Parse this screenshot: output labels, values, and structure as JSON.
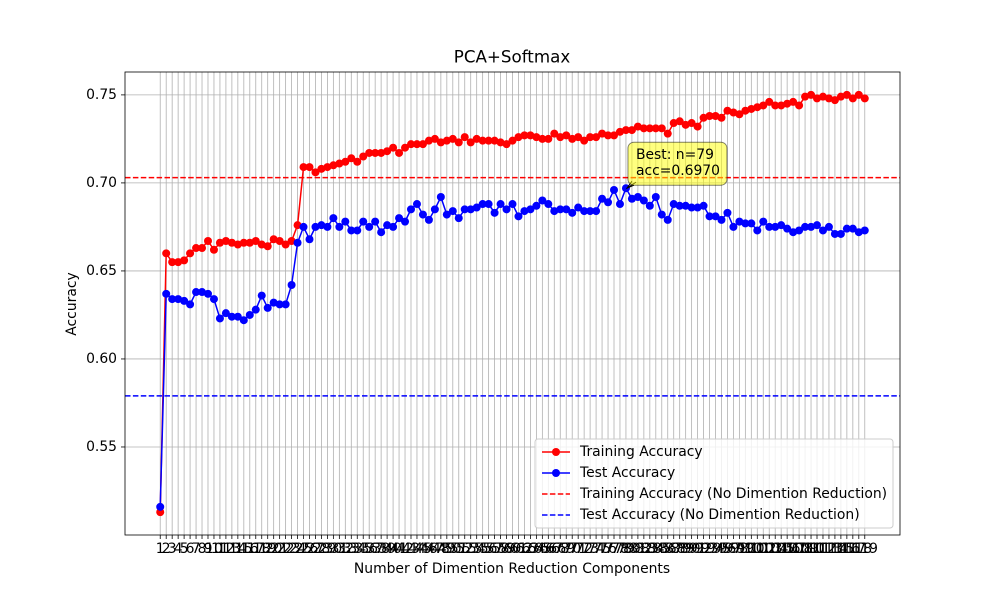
{
  "chart_data": {
    "type": "line",
    "title": "PCA+Softmax",
    "xlabel": "Number of Dimention Reduction Components",
    "ylabel": "Accuracy",
    "x": [
      1,
      2,
      3,
      4,
      5,
      6,
      7,
      8,
      9,
      10,
      11,
      12,
      13,
      14,
      15,
      16,
      17,
      18,
      19,
      20,
      21,
      22,
      23,
      24,
      25,
      26,
      27,
      28,
      29,
      30,
      31,
      32,
      33,
      34,
      35,
      36,
      37,
      38,
      39,
      40,
      41,
      42,
      43,
      44,
      45,
      46,
      47,
      48,
      49,
      50,
      51,
      52,
      53,
      54,
      55,
      56,
      57,
      58,
      59,
      60,
      61,
      62,
      63,
      64,
      65,
      66,
      67,
      68,
      69,
      70,
      71,
      72,
      73,
      74,
      75,
      76,
      77,
      78,
      79,
      80,
      81,
      82,
      83,
      84,
      85,
      86,
      87,
      88,
      89,
      90,
      91,
      92,
      93,
      94,
      95,
      96,
      97,
      98,
      99,
      100,
      101,
      102,
      103,
      104,
      105,
      106,
      107,
      108,
      109,
      110,
      111,
      112,
      113,
      114,
      115,
      116,
      117,
      118,
      119
    ],
    "series": [
      {
        "name": "Training Accuracy",
        "color": "#ff0000",
        "values": [
          0.513,
          0.66,
          0.655,
          0.655,
          0.656,
          0.66,
          0.663,
          0.663,
          0.667,
          0.662,
          0.666,
          0.667,
          0.666,
          0.665,
          0.666,
          0.666,
          0.667,
          0.665,
          0.664,
          0.668,
          0.667,
          0.665,
          0.667,
          0.676,
          0.709,
          0.709,
          0.706,
          0.708,
          0.709,
          0.71,
          0.711,
          0.712,
          0.714,
          0.712,
          0.715,
          0.717,
          0.717,
          0.717,
          0.718,
          0.72,
          0.717,
          0.72,
          0.722,
          0.722,
          0.722,
          0.724,
          0.725,
          0.723,
          0.724,
          0.725,
          0.723,
          0.726,
          0.723,
          0.725,
          0.724,
          0.724,
          0.724,
          0.723,
          0.722,
          0.724,
          0.726,
          0.727,
          0.727,
          0.726,
          0.725,
          0.725,
          0.728,
          0.726,
          0.727,
          0.725,
          0.726,
          0.724,
          0.726,
          0.726,
          0.728,
          0.727,
          0.727,
          0.729,
          0.73,
          0.73,
          0.732,
          0.731,
          0.731,
          0.731,
          0.731,
          0.728,
          0.734,
          0.735,
          0.733,
          0.734,
          0.732,
          0.737,
          0.738,
          0.738,
          0.737,
          0.741,
          0.74,
          0.739,
          0.741,
          0.742,
          0.743,
          0.744,
          0.746,
          0.744,
          0.744,
          0.745,
          0.746,
          0.744,
          0.749,
          0.75,
          0.748,
          0.749,
          0.748,
          0.747,
          0.749,
          0.75,
          0.748,
          0.75,
          0.748
        ]
      },
      {
        "name": "Test Accuracy",
        "color": "#0000ff",
        "values": [
          0.516,
          0.637,
          0.634,
          0.634,
          0.633,
          0.631,
          0.638,
          0.638,
          0.637,
          0.634,
          0.623,
          0.626,
          0.624,
          0.624,
          0.622,
          0.625,
          0.628,
          0.636,
          0.629,
          0.632,
          0.631,
          0.631,
          0.642,
          0.666,
          0.675,
          0.668,
          0.675,
          0.676,
          0.675,
          0.68,
          0.675,
          0.678,
          0.673,
          0.673,
          0.678,
          0.675,
          0.678,
          0.672,
          0.676,
          0.675,
          0.68,
          0.678,
          0.685,
          0.688,
          0.682,
          0.679,
          0.685,
          0.692,
          0.682,
          0.684,
          0.68,
          0.685,
          0.685,
          0.686,
          0.688,
          0.688,
          0.683,
          0.688,
          0.685,
          0.688,
          0.681,
          0.684,
          0.685,
          0.687,
          0.69,
          0.688,
          0.684,
          0.685,
          0.685,
          0.683,
          0.686,
          0.684,
          0.684,
          0.684,
          0.691,
          0.689,
          0.696,
          0.688,
          0.697,
          0.691,
          0.692,
          0.69,
          0.687,
          0.692,
          0.682,
          0.679,
          0.688,
          0.687,
          0.687,
          0.686,
          0.686,
          0.687,
          0.681,
          0.681,
          0.679,
          0.683,
          0.675,
          0.678,
          0.677,
          0.677,
          0.673,
          0.678,
          0.675,
          0.675,
          0.676,
          0.674,
          0.672,
          0.673,
          0.675,
          0.675,
          0.676,
          0.673,
          0.675,
          0.671,
          0.671,
          0.674,
          0.674,
          0.672,
          0.673
        ]
      }
    ],
    "hlines": [
      {
        "name": "Training Accuracy (No Dimention Reduction)",
        "color": "#ff0000",
        "value": 0.703
      },
      {
        "name": "Test Accuracy (No Dimention Reduction)",
        "color": "#0000ff",
        "value": 0.579
      }
    ],
    "annotation": {
      "text": [
        "Best: n=79",
        "acc=0.6970"
      ],
      "x": 79,
      "y": 0.697
    },
    "xlim": [
      -4.9,
      124.9
    ],
    "ylim": [
      0.5,
      0.763
    ],
    "xticks": [
      1,
      2,
      3,
      4,
      5,
      6,
      7,
      8,
      9,
      10,
      11,
      12,
      13,
      14,
      15,
      16,
      17,
      18,
      19,
      20,
      21,
      22,
      23,
      24,
      25,
      26,
      27,
      28,
      29,
      30,
      31,
      32,
      33,
      34,
      35,
      36,
      37,
      38,
      39,
      40,
      41,
      42,
      43,
      44,
      45,
      46,
      47,
      48,
      49,
      50,
      51,
      52,
      53,
      54,
      55,
      56,
      57,
      58,
      59,
      60,
      61,
      62,
      63,
      64,
      65,
      66,
      67,
      68,
      69,
      70,
      71,
      72,
      73,
      74,
      75,
      76,
      77,
      78,
      79,
      80,
      81,
      82,
      83,
      84,
      85,
      86,
      87,
      88,
      89,
      90,
      91,
      92,
      93,
      94,
      95,
      96,
      97,
      98,
      99,
      100,
      101,
      102,
      103,
      104,
      105,
      106,
      107,
      108,
      109,
      110,
      111,
      112,
      113,
      114,
      115,
      116,
      117,
      118,
      119
    ],
    "yticks": [
      0.55,
      {
        "value": 0.6,
        "label": "0.60"
      },
      0.65,
      {
        "value": 0.7,
        "label": "0.70"
      },
      0.75
    ],
    "grid": true,
    "legend": "lower right"
  }
}
